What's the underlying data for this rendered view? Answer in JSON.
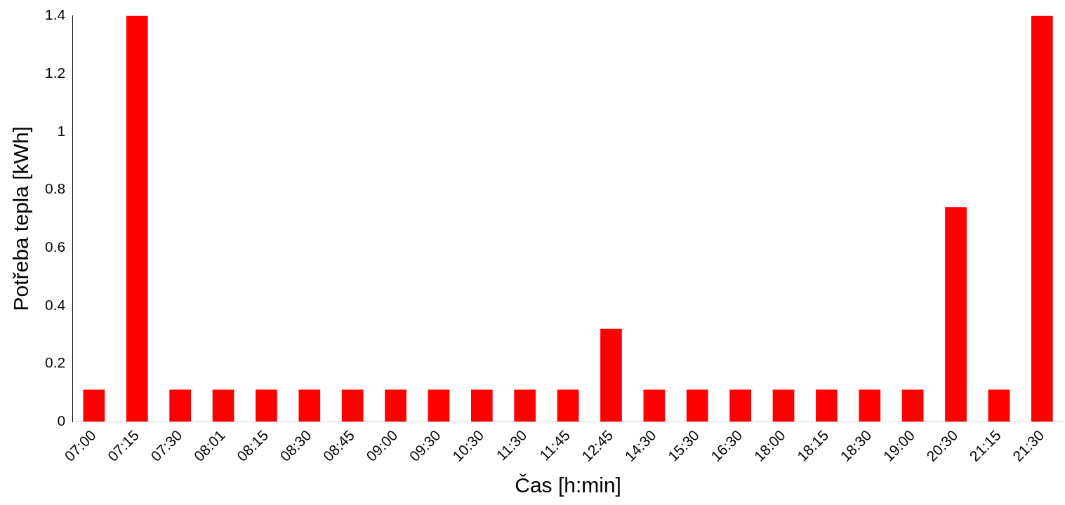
{
  "chart_data": {
    "type": "bar",
    "xlabel": "Čas [h:min]",
    "ylabel": "Potřeba tepla [kWh]",
    "categories": [
      "07:00",
      "07:15",
      "07:30",
      "08:01",
      "08:15",
      "08:30",
      "08:45",
      "09:00",
      "09:30",
      "10:30",
      "11:30",
      "11:45",
      "12:45",
      "14:30",
      "15:30",
      "16:30",
      "18:00",
      "18:15",
      "18:30",
      "19:00",
      "20:30",
      "21:15",
      "21:30"
    ],
    "values": [
      0.11,
      1.4,
      0.11,
      0.11,
      0.11,
      0.11,
      0.11,
      0.11,
      0.11,
      0.11,
      0.11,
      0.11,
      0.32,
      0.11,
      0.11,
      0.11,
      0.11,
      0.11,
      0.11,
      0.11,
      0.74,
      0.11,
      1.4
    ],
    "color": "#ff0000",
    "ylim": [
      0,
      1.4
    ],
    "yticks": [
      0,
      0.2,
      0.4,
      0.6,
      0.8,
      1,
      1.2,
      1.4
    ],
    "grid": false,
    "legend": false
  }
}
